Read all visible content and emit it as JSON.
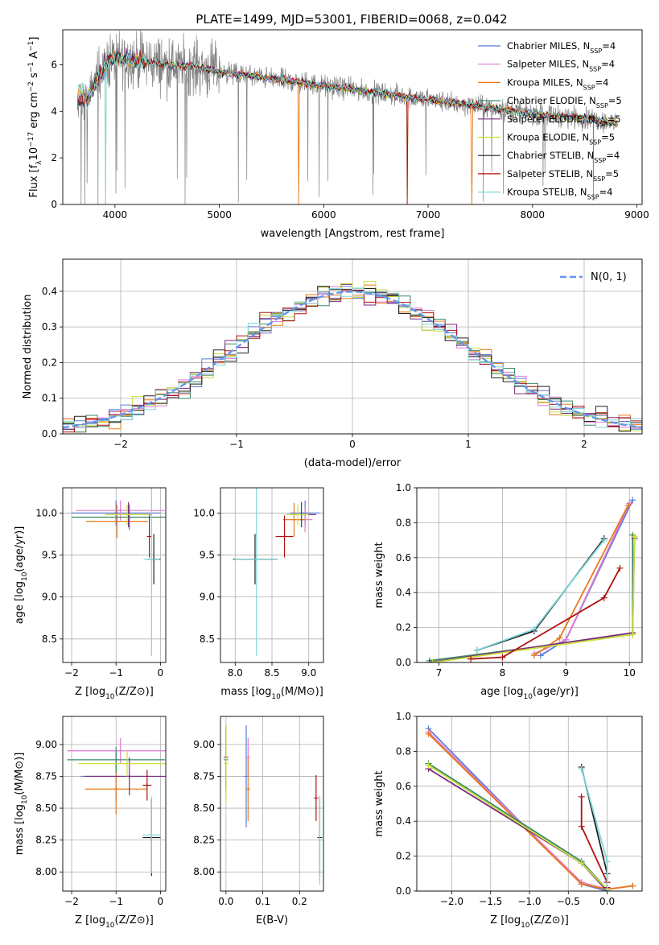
{
  "figure_title": "PLATE=1499, MJD=53001, FIBERID=0068, z=0.042",
  "colors": {
    "chab_miles": "#5b7bd6",
    "salp_miles": "#e07ad0",
    "krou_miles": "#e87a1a",
    "chab_elodie": "#3a8a6a",
    "salp_elodie": "#7a2a7a",
    "krou_elodie": "#c8e03a",
    "chab_stelib": "#202020",
    "salp_stelib": "#b01010",
    "krou_stelib": "#7fd6d6",
    "data": "#808080",
    "normal": "#6495ed"
  },
  "chart_data": [
    {
      "id": "spectrum",
      "type": "line",
      "title": "PLATE=1499, MJD=53001, FIBERID=0068, z=0.042",
      "xlabel": "wavelength [Angstrom, rest frame]",
      "ylabel": "Flux [f_λ 10^-17 erg cm^-2 s^-1 A^-1]",
      "xlim": [
        3500,
        9050
      ],
      "ylim": [
        0,
        7.5
      ],
      "xticks": [
        4000,
        5000,
        6000,
        7000,
        8000,
        9000
      ],
      "yticks": [
        0,
        2,
        4,
        6
      ],
      "continuum": [
        [
          3650,
          4.3
        ],
        [
          3750,
          4.6
        ],
        [
          3850,
          5.6
        ],
        [
          3950,
          6.2
        ],
        [
          4000,
          6.3
        ],
        [
          4200,
          6.2
        ],
        [
          4500,
          6.0
        ],
        [
          4800,
          5.9
        ],
        [
          5000,
          5.7
        ],
        [
          5500,
          5.4
        ],
        [
          6000,
          5.1
        ],
        [
          6500,
          4.8
        ],
        [
          7000,
          4.5
        ],
        [
          7500,
          4.2
        ],
        [
          8000,
          3.9
        ],
        [
          8500,
          3.7
        ],
        [
          8800,
          3.5
        ]
      ],
      "legend": [
        {
          "key": "chab_miles",
          "label": "Chabrier MILES, N",
          "sub": "SSP",
          "tail": "=4"
        },
        {
          "key": "salp_miles",
          "label": "Salpeter MILES, N",
          "sub": "SSP",
          "tail": "=4"
        },
        {
          "key": "krou_miles",
          "label": "Kroupa MILES, N",
          "sub": "SSP",
          "tail": "=4"
        },
        {
          "key": "chab_elodie",
          "label": "Chabrier ELODIE, N",
          "sub": "SSP",
          "tail": "=5"
        },
        {
          "key": "salp_elodie",
          "label": "Salpeter ELODIE, N",
          "sub": "SSP",
          "tail": "=5"
        },
        {
          "key": "krou_elodie",
          "label": "Kroupa ELODIE, N",
          "sub": "SSP",
          "tail": "=5"
        },
        {
          "key": "chab_stelib",
          "label": "Chabrier STELIB, N",
          "sub": "SSP",
          "tail": "=4"
        },
        {
          "key": "salp_stelib",
          "label": "Salpeter STELIB, N",
          "sub": "SSP",
          "tail": "=5"
        },
        {
          "key": "krou_stelib",
          "label": "Kroupa STELIB, N",
          "sub": "SSP",
          "tail": "=4"
        }
      ]
    },
    {
      "id": "residuals",
      "type": "line",
      "xlabel": "(data-model)/error",
      "ylabel": "Normed distribution",
      "xlim": [
        -2.5,
        2.5
      ],
      "ylim": [
        0,
        0.49
      ],
      "xticks": [
        -2,
        -1,
        0,
        1,
        2
      ],
      "yticks": [
        0.0,
        0.1,
        0.2,
        0.3,
        0.4
      ],
      "legend": "N(0, 1)",
      "bin_width": 0.1
    },
    {
      "id": "age_vs_Z",
      "type": "scatter",
      "xlabel": "Z [log10(Z/Z⊙)]",
      "ylabel": "age  [log10(age/yr)]",
      "xlim": [
        -2.2,
        0.12
      ],
      "ylim": [
        8.22,
        10.3
      ],
      "xticks": [
        -2,
        -1,
        0
      ],
      "yticks": [
        8.5,
        9.0,
        9.5,
        10.0
      ],
      "points": [
        {
          "key": "chab_miles",
          "x": -1.0,
          "y": 10.0,
          "xe": 1.0,
          "ye": 0.15
        },
        {
          "key": "salp_miles",
          "x": -0.9,
          "y": 10.03,
          "xe": 1.0,
          "ye": 0.12
        },
        {
          "key": "krou_miles",
          "x": -0.98,
          "y": 9.9,
          "xe": 0.7,
          "ye": 0.2
        },
        {
          "key": "chab_elodie",
          "x": -0.7,
          "y": 9.95,
          "xe": 1.3,
          "ye": 0.15
        },
        {
          "key": "salp_elodie",
          "x": -0.72,
          "y": 9.98,
          "xe": 0.5,
          "ye": 0.15
        },
        {
          "key": "krou_elodie",
          "x": -0.75,
          "y": 9.98,
          "xe": 0.5,
          "ye": 0.12
        },
        {
          "key": "chab_stelib",
          "x": -0.15,
          "y": 9.45,
          "xe": 0.15,
          "ye": 0.3
        },
        {
          "key": "salp_stelib",
          "x": -0.25,
          "y": 9.72,
          "xe": 0.05,
          "ye": 0.25
        },
        {
          "key": "krou_stelib",
          "x": -0.2,
          "y": 9.45,
          "xe": 0.18,
          "ye": 1.15
        }
      ]
    },
    {
      "id": "age_vs_mass",
      "type": "scatter",
      "xlabel": "mass [log10(M/M⊙)]",
      "ylabel": "",
      "xlim": [
        7.8,
        9.2
      ],
      "ylim": [
        8.22,
        10.3
      ],
      "xticks": [
        8.0,
        8.5,
        9.0
      ],
      "yticks": [
        8.5,
        9.0,
        9.5,
        10.0
      ],
      "points": [
        {
          "key": "chab_miles",
          "x": 8.95,
          "y": 10.0,
          "xe": 0.2,
          "ye": 0.15
        },
        {
          "key": "salp_miles",
          "x": 8.95,
          "y": 9.92,
          "xe": 0.1,
          "ye": 0.15
        },
        {
          "key": "krou_miles",
          "x": 8.8,
          "y": 9.92,
          "xe": 0.15,
          "ye": 0.2
        },
        {
          "key": "chab_elodie",
          "x": 8.9,
          "y": 9.98,
          "xe": 0.15,
          "ye": 0.15
        },
        {
          "key": "salp_elodie",
          "x": 8.9,
          "y": 9.98,
          "xe": 0.2,
          "ye": 0.15
        },
        {
          "key": "krou_elodie",
          "x": 8.85,
          "y": 9.98,
          "xe": 0.15,
          "ye": 0.12
        },
        {
          "key": "chab_stelib",
          "x": 8.27,
          "y": 9.45,
          "xe": 0.3,
          "ye": 0.3
        },
        {
          "key": "salp_stelib",
          "x": 8.67,
          "y": 9.72,
          "xe": 0.12,
          "ye": 0.25
        },
        {
          "key": "krou_stelib",
          "x": 8.29,
          "y": 9.45,
          "xe": 0.3,
          "ye": 1.15
        }
      ]
    },
    {
      "id": "weight_vs_age",
      "type": "line",
      "xlabel": "age  [log10(age/yr)]",
      "ylabel": "mass weight",
      "xlim": [
        6.65,
        10.2
      ],
      "ylim": [
        0,
        1.0
      ],
      "xticks": [
        7,
        8,
        9,
        10
      ],
      "yticks": [
        0.0,
        0.2,
        0.4,
        0.6,
        0.8,
        1.0
      ],
      "series": [
        {
          "key": "chab_miles",
          "x": [
            8.6,
            9.0,
            10.05
          ],
          "y": [
            0.04,
            0.13,
            0.93
          ]
        },
        {
          "key": "salp_miles",
          "x": [
            8.5,
            9.0,
            10.0
          ],
          "y": [
            0.05,
            0.13,
            0.91
          ]
        },
        {
          "key": "krou_miles",
          "x": [
            8.5,
            8.9,
            9.98
          ],
          "y": [
            0.04,
            0.14,
            0.9
          ]
        },
        {
          "key": "chab_elodie",
          "x": [
            6.85,
            10.05,
            10.05
          ],
          "y": [
            0.01,
            0.16,
            0.73
          ]
        },
        {
          "key": "salp_elodie",
          "x": [
            6.85,
            10.05,
            10.08
          ],
          "y": [
            0.0,
            0.17,
            0.71
          ]
        },
        {
          "key": "krou_elodie",
          "x": [
            6.9,
            10.05,
            10.08
          ],
          "y": [
            0.0,
            0.16,
            0.72
          ]
        },
        {
          "key": "chab_stelib",
          "x": [
            7.6,
            8.5,
            9.6
          ],
          "y": [
            0.07,
            0.18,
            0.71
          ]
        },
        {
          "key": "salp_stelib",
          "x": [
            7.5,
            8.0,
            9.6,
            9.85
          ],
          "y": [
            0.02,
            0.03,
            0.37,
            0.54
          ]
        },
        {
          "key": "krou_stelib",
          "x": [
            7.6,
            8.5,
            9.6
          ],
          "y": [
            0.07,
            0.19,
            0.7
          ]
        }
      ]
    },
    {
      "id": "mass_vs_Z",
      "type": "scatter",
      "xlabel": "Z [log10(Z/Z⊙)]",
      "ylabel": "mass [log10(M/M⊙)]",
      "xlim": [
        -2.2,
        0.12
      ],
      "ylim": [
        7.85,
        9.22
      ],
      "xticks": [
        -2,
        -1,
        0
      ],
      "yticks": [
        8.0,
        8.25,
        8.5,
        8.75,
        9.0
      ],
      "points": [
        {
          "key": "chab_miles",
          "x": -1.0,
          "y": 8.75,
          "xe": 0.8,
          "ye": 0.2
        },
        {
          "key": "salp_miles",
          "x": -0.9,
          "y": 8.95,
          "xe": 1.2,
          "ye": 0.1
        },
        {
          "key": "krou_miles",
          "x": -1.0,
          "y": 8.65,
          "xe": 0.7,
          "ye": 0.2
        },
        {
          "key": "chab_elodie",
          "x": -1.0,
          "y": 8.88,
          "xe": 1.1,
          "ye": 0.1
        },
        {
          "key": "salp_elodie",
          "x": -0.7,
          "y": 8.75,
          "xe": 1.0,
          "ye": 0.15
        },
        {
          "key": "krou_elodie",
          "x": -0.75,
          "y": 8.85,
          "xe": 1.1,
          "ye": 0.1
        },
        {
          "key": "chab_stelib",
          "x": -0.2,
          "y": 8.27,
          "xe": 0.2,
          "ye": 0.3
        },
        {
          "key": "salp_stelib",
          "x": -0.3,
          "y": 8.68,
          "xe": 0.1,
          "ye": 0.12
        },
        {
          "key": "krou_stelib",
          "x": -0.2,
          "y": 8.29,
          "xe": 0.2,
          "ye": 0.3
        }
      ]
    },
    {
      "id": "mass_vs_EBV",
      "type": "scatter",
      "xlabel": "E(B-V)",
      "ylabel": "",
      "xlim": [
        -0.015,
        0.265
      ],
      "ylim": [
        7.85,
        9.22
      ],
      "xticks": [
        0.0,
        0.1,
        0.2
      ],
      "yticks": [
        8.0,
        8.25,
        8.5,
        8.75,
        9.0
      ],
      "points": [
        {
          "key": "chab_miles",
          "x": 0.055,
          "y": 8.75,
          "ye": 0.4
        },
        {
          "key": "salp_miles",
          "x": 0.06,
          "y": 8.9,
          "ye": 0.15
        },
        {
          "key": "krou_miles",
          "x": 0.06,
          "y": 8.65,
          "ye": 0.25
        },
        {
          "key": "chab_elodie",
          "x": 0.0,
          "y": 8.88,
          "ye": 0.25
        },
        {
          "key": "salp_elodie",
          "x": 0.0,
          "y": 8.9,
          "ye": 0.25
        },
        {
          "key": "krou_elodie",
          "x": 0.0,
          "y": 8.85,
          "ye": 0.3
        },
        {
          "key": "chab_stelib",
          "x": 0.255,
          "y": 8.27,
          "ye": 0.3
        },
        {
          "key": "salp_stelib",
          "x": 0.245,
          "y": 8.58,
          "ye": 0.18
        },
        {
          "key": "krou_stelib",
          "x": 0.255,
          "y": 8.25,
          "ye": 0.35
        }
      ]
    },
    {
      "id": "weight_vs_Z",
      "type": "line",
      "xlabel": "Z [log10(Z/Z⊙)]",
      "ylabel": "mass weight",
      "xlim": [
        -2.45,
        0.45
      ],
      "ylim": [
        0,
        1.0
      ],
      "xticks": [
        -2.0,
        -1.5,
        -1.0,
        -0.5,
        0.0
      ],
      "yticks": [
        0.0,
        0.2,
        0.4,
        0.6,
        0.8,
        1.0
      ],
      "series": [
        {
          "key": "chab_miles",
          "x": [
            -2.3,
            -0.33,
            0.0
          ],
          "y": [
            0.93,
            0.04,
            0.0
          ]
        },
        {
          "key": "salp_miles",
          "x": [
            -2.3,
            -0.33,
            0.0,
            0.33
          ],
          "y": [
            0.91,
            0.05,
            0.01,
            0.03
          ]
        },
        {
          "key": "krou_miles",
          "x": [
            -2.3,
            -0.33,
            0.0,
            0.33
          ],
          "y": [
            0.9,
            0.04,
            0.01,
            0.03
          ]
        },
        {
          "key": "chab_elodie",
          "x": [
            -2.3,
            -0.33,
            0.0
          ],
          "y": [
            0.73,
            0.17,
            0.01
          ]
        },
        {
          "key": "salp_elodie",
          "x": [
            -2.3,
            -0.33,
            0.0
          ],
          "y": [
            0.7,
            0.16,
            0.0
          ]
        },
        {
          "key": "krou_elodie",
          "x": [
            -2.3,
            -0.33,
            0.0
          ],
          "y": [
            0.72,
            0.16,
            0.01
          ]
        },
        {
          "key": "chab_stelib",
          "x": [
            -0.33,
            0.0,
            0.0
          ],
          "y": [
            0.71,
            0.1,
            0.0
          ]
        },
        {
          "key": "salp_stelib",
          "x": [
            -0.33,
            -0.33,
            0.0,
            0.0
          ],
          "y": [
            0.54,
            0.37,
            0.05,
            0.02
          ]
        },
        {
          "key": "krou_stelib",
          "x": [
            -0.33,
            0.0,
            0.0
          ],
          "y": [
            0.7,
            0.17,
            0.0
          ]
        }
      ]
    }
  ]
}
